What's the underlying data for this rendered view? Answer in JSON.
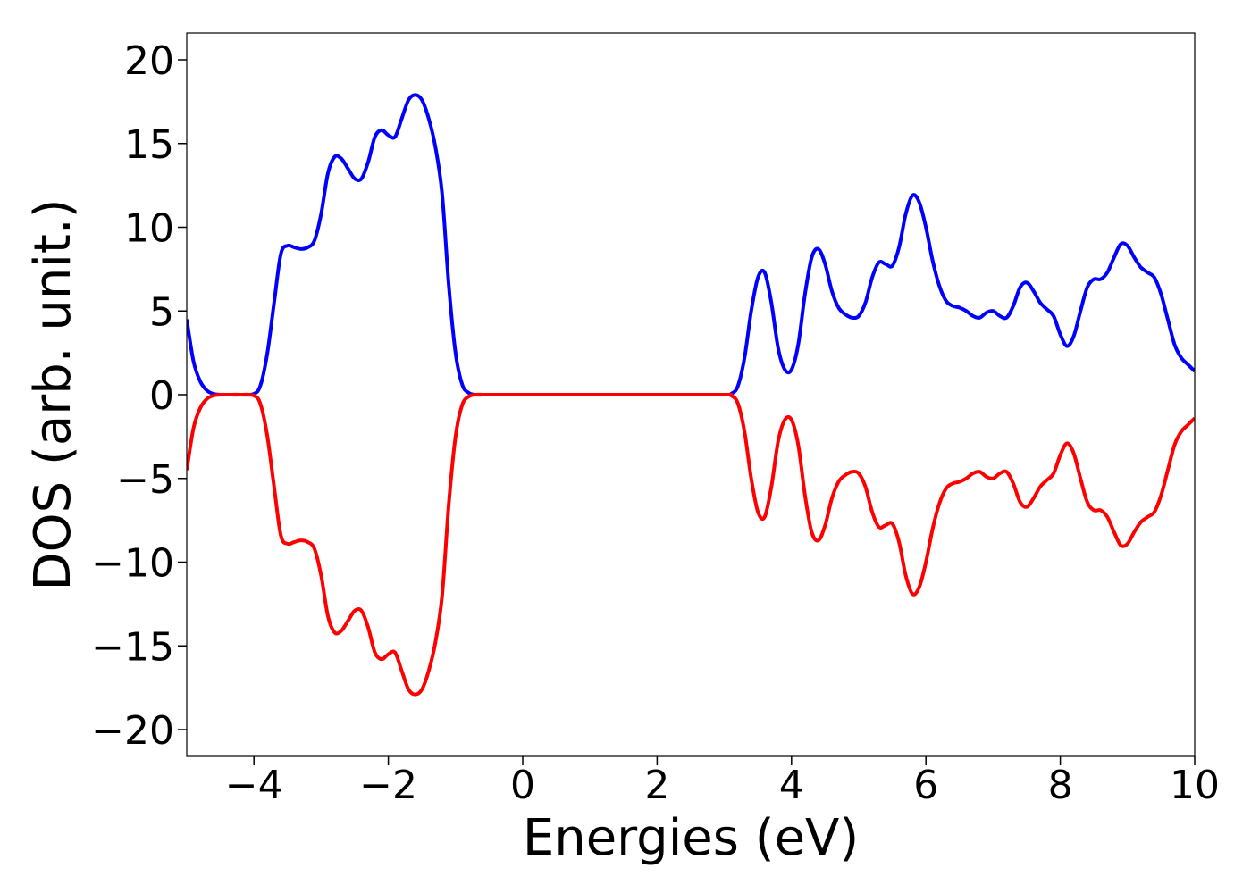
{
  "chart_data": {
    "type": "line",
    "title": "",
    "xlabel": "Energies (eV)",
    "ylabel": "DOS (arb. unit.)",
    "xlim": [
      -5,
      10
    ],
    "ylim": [
      -21.6,
      21.6
    ],
    "xticks": [
      -4,
      -2,
      0,
      2,
      4,
      6,
      8,
      10
    ],
    "xtick_labels": [
      "−4",
      "−2",
      "0",
      "2",
      "4",
      "6",
      "8",
      "10"
    ],
    "yticks": [
      -20,
      -15,
      -10,
      -5,
      0,
      5,
      10,
      15,
      20
    ],
    "ytick_labels": [
      "−20",
      "−15",
      "−10",
      "−5",
      "0",
      "5",
      "10",
      "15",
      "20"
    ],
    "grid": false,
    "legend": "none",
    "series": [
      {
        "color": "#0000ff",
        "x": [
          -5.0,
          -4.9,
          -4.8,
          -4.7,
          -4.6,
          -4.5,
          -4.4,
          -4.2,
          -4.0,
          -3.9,
          -3.8,
          -3.7,
          -3.6,
          -3.5,
          -3.4,
          -3.3,
          -3.2,
          -3.1,
          -3.0,
          -2.9,
          -2.8,
          -2.7,
          -2.6,
          -2.5,
          -2.4,
          -2.3,
          -2.2,
          -2.1,
          -2.0,
          -1.9,
          -1.8,
          -1.7,
          -1.6,
          -1.5,
          -1.4,
          -1.3,
          -1.2,
          -1.1,
          -1.0,
          -0.9,
          -0.8,
          -0.7,
          -0.6,
          -0.5,
          0.0,
          1.0,
          2.0,
          3.0,
          3.1,
          3.2,
          3.3,
          3.4,
          3.5,
          3.6,
          3.7,
          3.8,
          3.9,
          4.0,
          4.1,
          4.2,
          4.3,
          4.4,
          4.5,
          4.6,
          4.7,
          4.8,
          4.9,
          5.0,
          5.1,
          5.2,
          5.3,
          5.4,
          5.5,
          5.6,
          5.7,
          5.8,
          5.9,
          6.0,
          6.1,
          6.2,
          6.3,
          6.4,
          6.5,
          6.6,
          6.7,
          6.8,
          6.9,
          7.0,
          7.1,
          7.2,
          7.3,
          7.4,
          7.5,
          7.6,
          7.7,
          7.8,
          7.9,
          8.0,
          8.1,
          8.2,
          8.3,
          8.4,
          8.5,
          8.6,
          8.7,
          8.8,
          8.9,
          9.0,
          9.1,
          9.2,
          9.3,
          9.4,
          9.5,
          9.6,
          9.7,
          9.8,
          9.9,
          10.0
        ],
        "y": [
          4.5,
          2.0,
          0.8,
          0.25,
          0.05,
          0.0,
          0.0,
          0.0,
          0.05,
          0.6,
          2.5,
          5.5,
          8.4,
          8.9,
          8.8,
          8.7,
          8.8,
          9.2,
          10.8,
          13.2,
          14.2,
          14.1,
          13.5,
          12.9,
          12.9,
          13.9,
          15.4,
          15.8,
          15.5,
          15.4,
          16.5,
          17.6,
          17.9,
          17.6,
          16.5,
          14.8,
          12.0,
          6.5,
          2.5,
          0.6,
          0.1,
          0.0,
          0.0,
          0.0,
          0.0,
          0.0,
          0.0,
          0.0,
          0.05,
          0.5,
          2.2,
          5.0,
          7.0,
          7.3,
          5.5,
          2.8,
          1.5,
          1.5,
          3.0,
          6.0,
          8.2,
          8.7,
          7.8,
          6.2,
          5.2,
          4.8,
          4.6,
          4.7,
          5.5,
          7.0,
          7.9,
          7.8,
          7.7,
          8.8,
          10.8,
          11.9,
          11.5,
          10.0,
          8.0,
          6.5,
          5.6,
          5.3,
          5.2,
          5.0,
          4.7,
          4.6,
          4.9,
          5.0,
          4.7,
          4.6,
          5.3,
          6.4,
          6.7,
          6.2,
          5.5,
          5.1,
          4.7,
          3.6,
          2.9,
          3.5,
          5.0,
          6.4,
          6.9,
          6.9,
          7.3,
          8.2,
          9.0,
          8.9,
          8.2,
          7.6,
          7.3,
          7.0,
          6.0,
          4.5,
          3.0,
          2.2,
          1.8,
          1.4
        ]
      },
      {
        "color": "#ff0000",
        "x": [
          -5.0,
          -4.9,
          -4.8,
          -4.7,
          -4.6,
          -4.5,
          -4.4,
          -4.2,
          -4.0,
          -3.9,
          -3.8,
          -3.7,
          -3.6,
          -3.5,
          -3.4,
          -3.3,
          -3.2,
          -3.1,
          -3.0,
          -2.9,
          -2.8,
          -2.7,
          -2.6,
          -2.5,
          -2.4,
          -2.3,
          -2.2,
          -2.1,
          -2.0,
          -1.9,
          -1.8,
          -1.7,
          -1.6,
          -1.5,
          -1.4,
          -1.3,
          -1.2,
          -1.1,
          -1.0,
          -0.9,
          -0.8,
          -0.7,
          -0.6,
          -0.5,
          0.0,
          1.0,
          2.0,
          3.0,
          3.1,
          3.2,
          3.3,
          3.4,
          3.5,
          3.6,
          3.7,
          3.8,
          3.9,
          4.0,
          4.1,
          4.2,
          4.3,
          4.4,
          4.5,
          4.6,
          4.7,
          4.8,
          4.9,
          5.0,
          5.1,
          5.2,
          5.3,
          5.4,
          5.5,
          5.6,
          5.7,
          5.8,
          5.9,
          6.0,
          6.1,
          6.2,
          6.3,
          6.4,
          6.5,
          6.6,
          6.7,
          6.8,
          6.9,
          7.0,
          7.1,
          7.2,
          7.3,
          7.4,
          7.5,
          7.6,
          7.7,
          7.8,
          7.9,
          8.0,
          8.1,
          8.2,
          8.3,
          8.4,
          8.5,
          8.6,
          8.7,
          8.8,
          8.9,
          9.0,
          9.1,
          9.2,
          9.3,
          9.4,
          9.5,
          9.6,
          9.7,
          9.8,
          9.9,
          10.0
        ],
        "y": [
          -4.5,
          -2.0,
          -0.8,
          -0.25,
          -0.05,
          0.0,
          0.0,
          0.0,
          -0.05,
          -0.6,
          -2.5,
          -5.5,
          -8.4,
          -8.9,
          -8.8,
          -8.7,
          -8.8,
          -9.2,
          -10.8,
          -13.2,
          -14.2,
          -14.1,
          -13.5,
          -12.9,
          -12.9,
          -13.9,
          -15.4,
          -15.8,
          -15.5,
          -15.4,
          -16.5,
          -17.6,
          -17.9,
          -17.6,
          -16.5,
          -14.8,
          -12.0,
          -6.5,
          -2.5,
          -0.6,
          -0.1,
          0.0,
          0.0,
          0.0,
          0.0,
          0.0,
          0.0,
          0.0,
          -0.05,
          -0.5,
          -2.2,
          -5.0,
          -7.0,
          -7.3,
          -5.5,
          -2.8,
          -1.5,
          -1.5,
          -3.0,
          -6.0,
          -8.2,
          -8.7,
          -7.8,
          -6.2,
          -5.2,
          -4.8,
          -4.6,
          -4.7,
          -5.5,
          -7.0,
          -7.9,
          -7.8,
          -7.7,
          -8.8,
          -10.8,
          -11.9,
          -11.5,
          -10.0,
          -8.0,
          -6.5,
          -5.6,
          -5.3,
          -5.2,
          -5.0,
          -4.7,
          -4.6,
          -4.9,
          -5.0,
          -4.7,
          -4.6,
          -5.3,
          -6.4,
          -6.7,
          -6.2,
          -5.5,
          -5.1,
          -4.7,
          -3.6,
          -2.9,
          -3.5,
          -5.0,
          -6.4,
          -6.9,
          -6.9,
          -7.3,
          -8.2,
          -9.0,
          -8.9,
          -8.2,
          -7.6,
          -7.3,
          -7.0,
          -6.0,
          -4.5,
          -3.0,
          -2.2,
          -1.8,
          -1.4
        ]
      }
    ]
  }
}
